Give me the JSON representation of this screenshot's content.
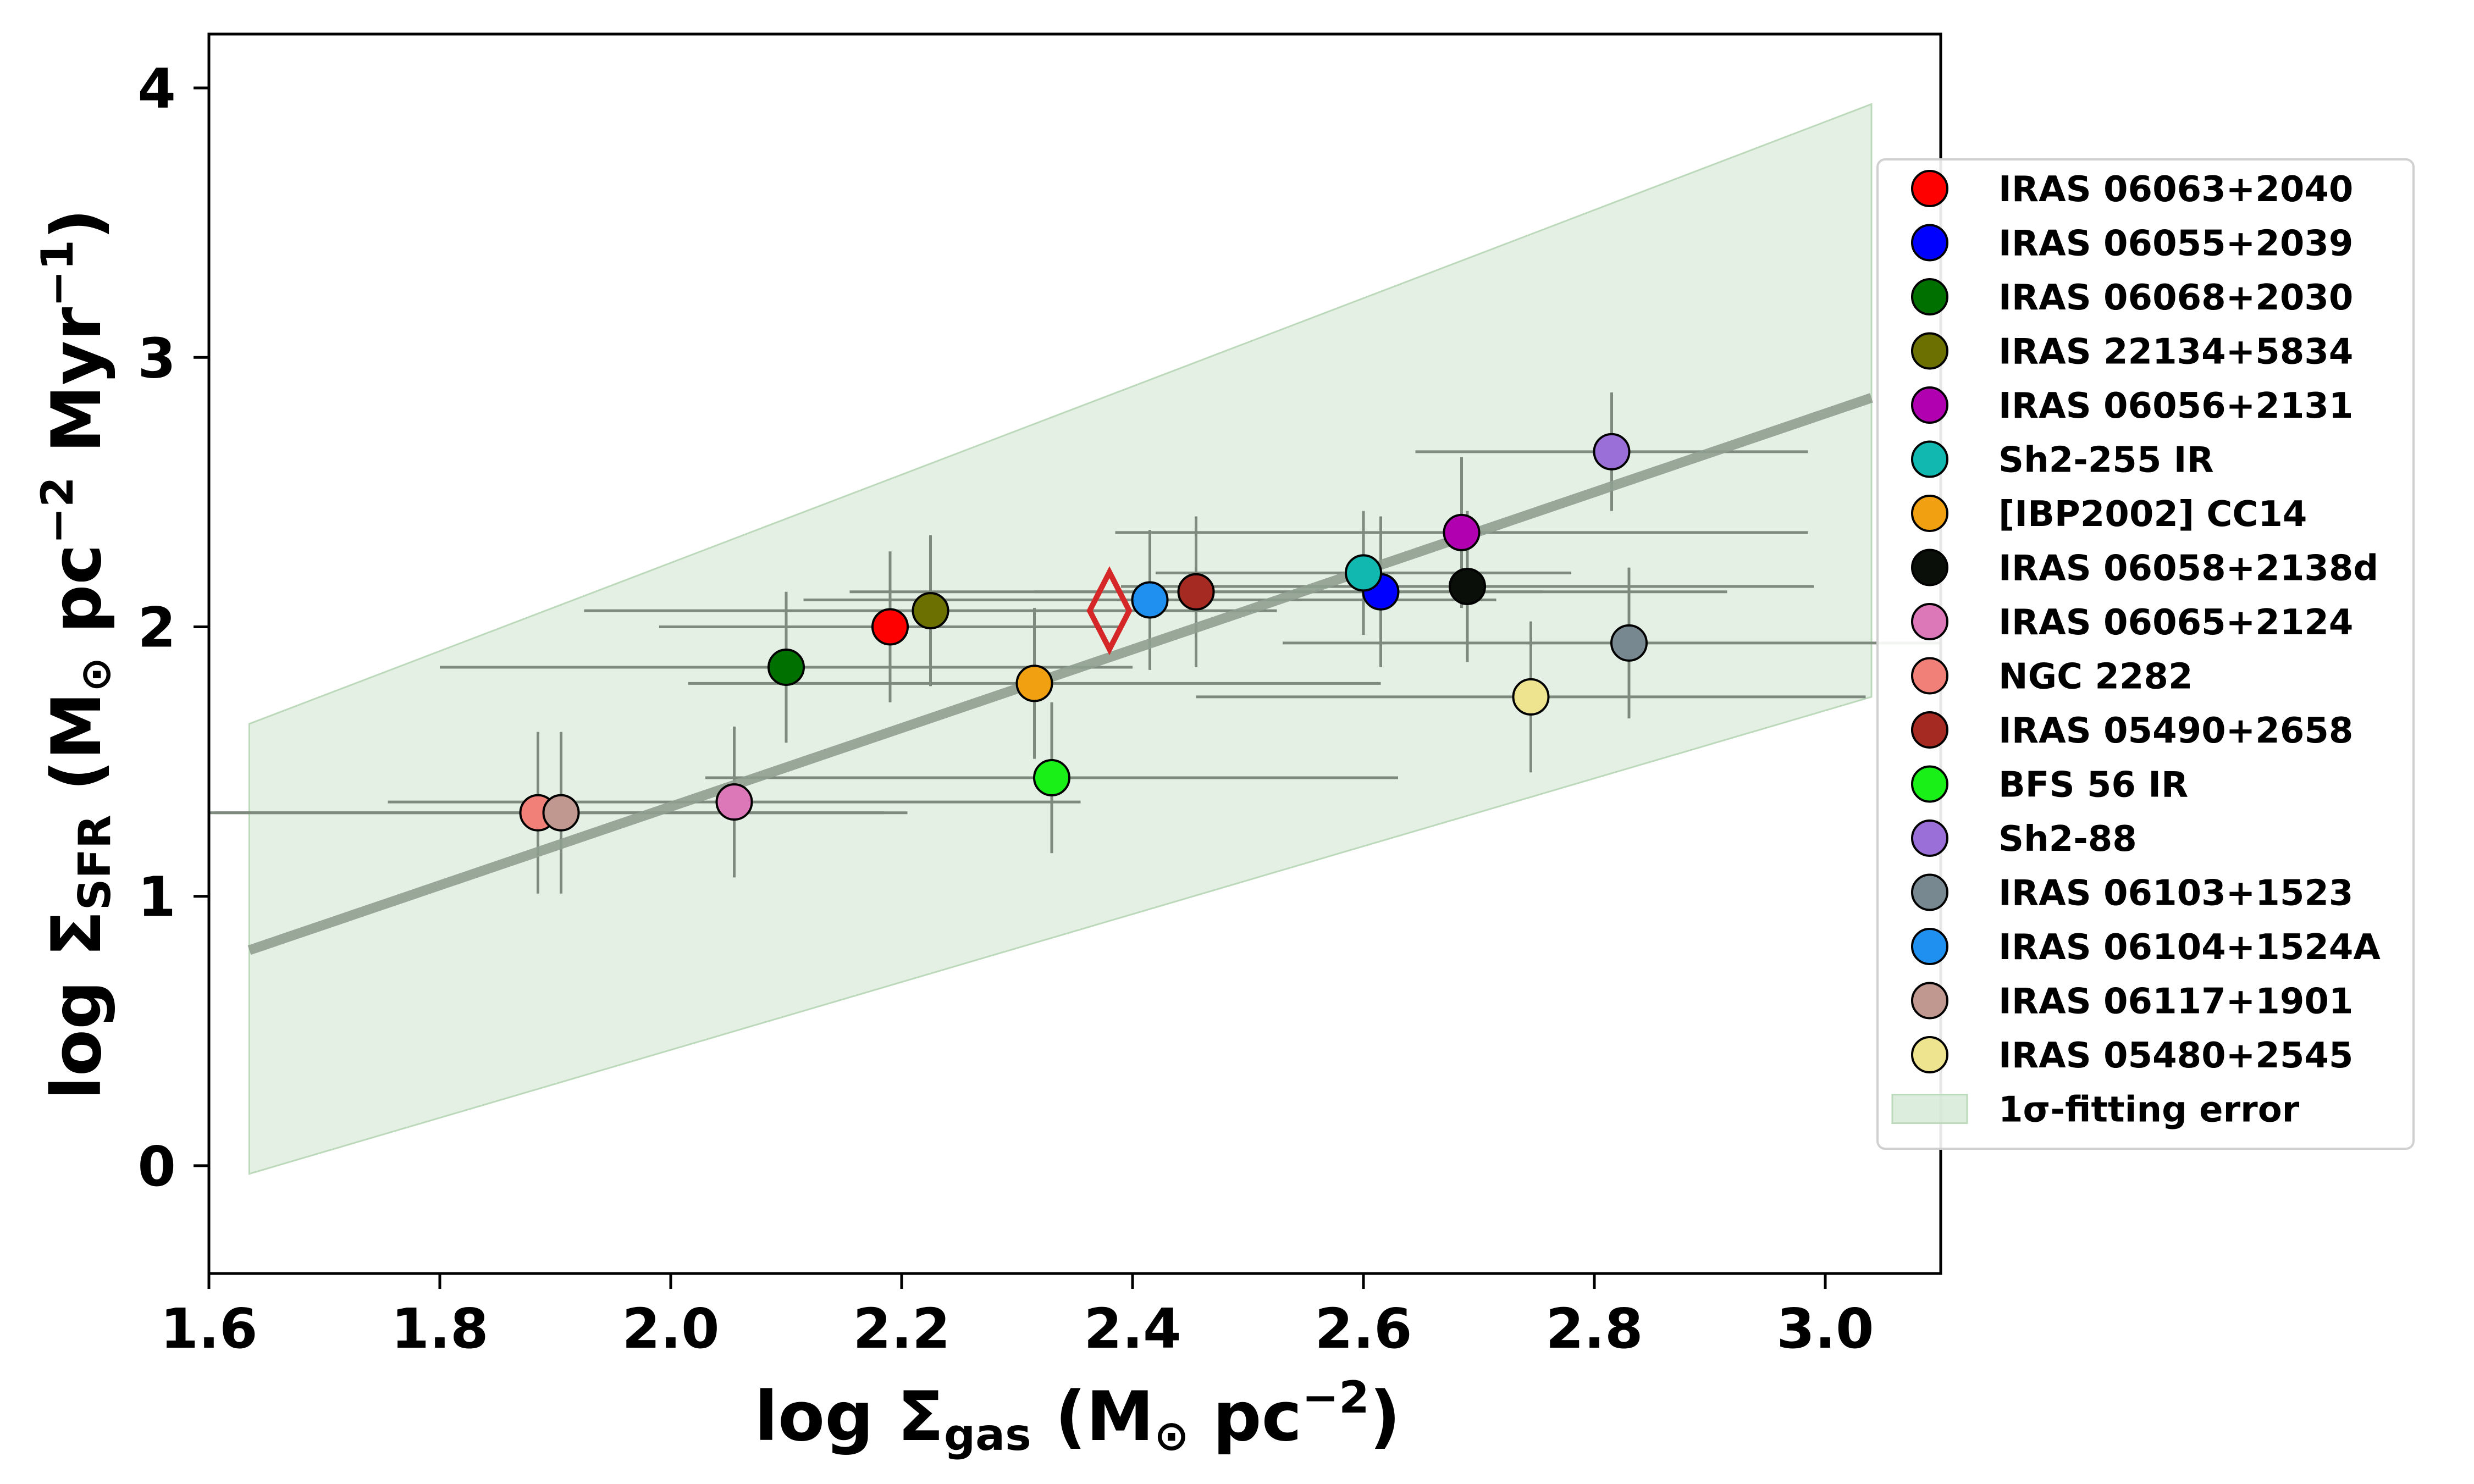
{
  "chart_data": {
    "type": "scatter",
    "xlabel": {
      "prefix": "log Σ",
      "sub": "gas",
      "mid": " (M",
      "odot": "⊙",
      "unit": " pc",
      "sup": "−2",
      "suffix": ")"
    },
    "ylabel": {
      "prefix": "log Σ",
      "sub": "SFR",
      "mid": " (M",
      "odot": "⊙",
      "unit": " pc",
      "sup": "−2",
      "unit2": " Myr",
      "sup2": "−1",
      "suffix": ")"
    },
    "xlim": [
      1.6,
      3.1
    ],
    "ylim": [
      -0.4,
      4.2
    ],
    "xticks": [
      1.6,
      1.8,
      2.0,
      2.2,
      2.4,
      2.6,
      2.8,
      3.0
    ],
    "xtick_labels": [
      "1.6",
      "1.8",
      "2.0",
      "2.2",
      "2.4",
      "2.6",
      "2.8",
      "3.0"
    ],
    "yticks": [
      0,
      1,
      2,
      3,
      4
    ],
    "ytick_labels": [
      "0",
      "1",
      "2",
      "3",
      "4"
    ],
    "fit_line": {
      "x": [
        1.635,
        3.04
      ],
      "y": [
        0.8,
        2.85
      ],
      "color": "#8f9e8f"
    },
    "error_band": {
      "x": [
        1.635,
        3.04
      ],
      "upper": [
        1.64,
        3.94
      ],
      "lower": [
        -0.03,
        1.74
      ],
      "color": "#d5e8d4",
      "label": "1σ-fitting error"
    },
    "special_marker": {
      "x": 2.38,
      "y": 2.06,
      "shape": "diamond",
      "color": "#d62728"
    },
    "series": [
      {
        "name": "IRAS 06063+2040",
        "x": 2.19,
        "y": 2.0,
        "xerr": 0.2,
        "yerr": 0.28,
        "color": "#ff0000"
      },
      {
        "name": "IRAS 06055+2039",
        "x": 2.615,
        "y": 2.13,
        "xerr": 0.3,
        "yerr": 0.28,
        "color": "#0000ff"
      },
      {
        "name": "IRAS 06068+2030",
        "x": 2.1,
        "y": 1.85,
        "xerr": 0.3,
        "yerr": 0.28,
        "color": "#007000"
      },
      {
        "name": "IRAS 22134+5834",
        "x": 2.225,
        "y": 2.06,
        "xerr": 0.3,
        "yerr": 0.28,
        "color": "#6b7000"
      },
      {
        "name": "IRAS 06056+2131",
        "x": 2.685,
        "y": 2.35,
        "xerr": 0.3,
        "yerr": 0.28,
        "color": "#b000b0"
      },
      {
        "name": "Sh2-255 IR",
        "x": 2.6,
        "y": 2.2,
        "xerr": 0.18,
        "yerr": 0.23,
        "color": "#10b8b0"
      },
      {
        "name": "[IBP2002] CC14",
        "x": 2.315,
        "y": 1.79,
        "xerr": 0.3,
        "yerr": 0.28,
        "color": "#f0a010"
      },
      {
        "name": "IRAS 06058+2138d",
        "x": 2.69,
        "y": 2.15,
        "xerr": 0.3,
        "yerr": 0.28,
        "color": "#0a0f0a"
      },
      {
        "name": "IRAS 06065+2124",
        "x": 2.055,
        "y": 1.35,
        "xerr": 0.3,
        "yerr": 0.28,
        "color": "#dd78b8"
      },
      {
        "name": "NGC 2282",
        "x": 1.885,
        "y": 1.31,
        "xerr": 0.3,
        "yerr": 0.3,
        "color": "#f08078"
      },
      {
        "name": "IRAS 05490+2658",
        "x": 2.455,
        "y": 2.13,
        "xerr": 0.3,
        "yerr": 0.28,
        "color": "#a52a22"
      },
      {
        "name": "BFS 56 IR",
        "x": 2.33,
        "y": 1.44,
        "xerr": 0.3,
        "yerr": 0.28,
        "color": "#18f018"
      },
      {
        "name": "Sh2-88",
        "x": 2.815,
        "y": 2.65,
        "xerr": 0.17,
        "yerr": 0.22,
        "color": "#9a70d8"
      },
      {
        "name": "IRAS 06103+1523",
        "x": 2.83,
        "y": 1.94,
        "xerr": 0.3,
        "yerr": 0.28,
        "color": "#788890"
      },
      {
        "name": "IRAS 06104+1524A",
        "x": 2.415,
        "y": 2.1,
        "xerr": 0.3,
        "yerr": 0.26,
        "color": "#2090f0"
      },
      {
        "name": "IRAS 06117+1901",
        "x": 1.905,
        "y": 1.31,
        "xerr": 0.3,
        "yerr": 0.3,
        "color": "#c09890"
      },
      {
        "name": "IRAS 05480+2545",
        "x": 2.745,
        "y": 1.74,
        "xerr": 0.29,
        "yerr": 0.28,
        "color": "#eee490"
      }
    ],
    "legend_position": "right"
  }
}
